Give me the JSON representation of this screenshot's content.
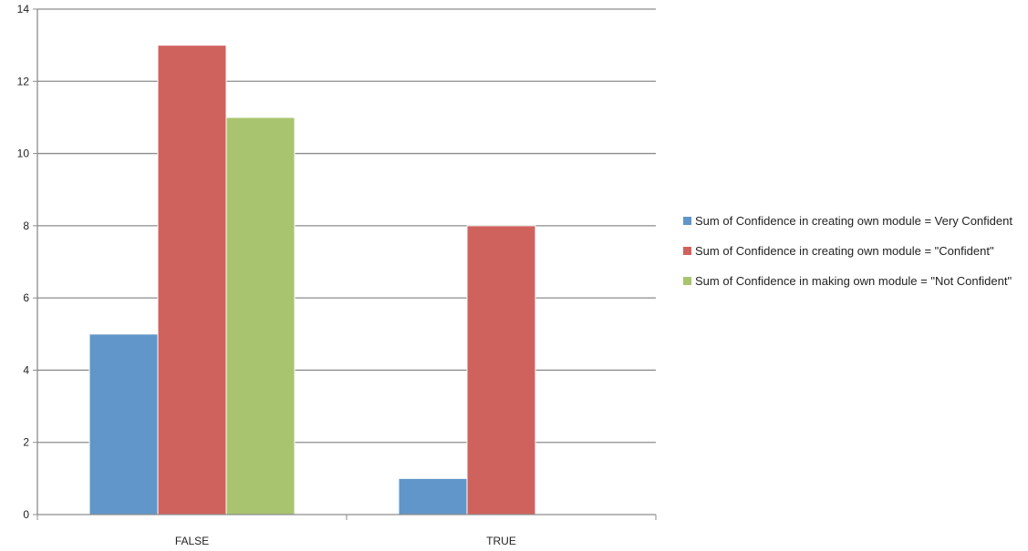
{
  "chart_data": {
    "type": "bar",
    "categories": [
      "FALSE",
      "TRUE"
    ],
    "series": [
      {
        "name": "Sum of Confidence in creating own module = Very Confident",
        "values": [
          5,
          1
        ],
        "color": "#6096c9"
      },
      {
        "name": "Sum of Confidence in creating own module = \"Confident\"",
        "values": [
          13,
          8
        ],
        "color": "#d0625e"
      },
      {
        "name": "Sum of Confidence in making own module = \"Not Confident\"",
        "values": [
          11,
          null
        ],
        "color": "#a9c46f"
      }
    ],
    "ylim": [
      0,
      14
    ],
    "yticks": [
      0,
      2,
      4,
      6,
      8,
      10,
      12,
      14
    ],
    "grid": true,
    "legend": "right",
    "title": "",
    "xlabel": "",
    "ylabel": ""
  }
}
